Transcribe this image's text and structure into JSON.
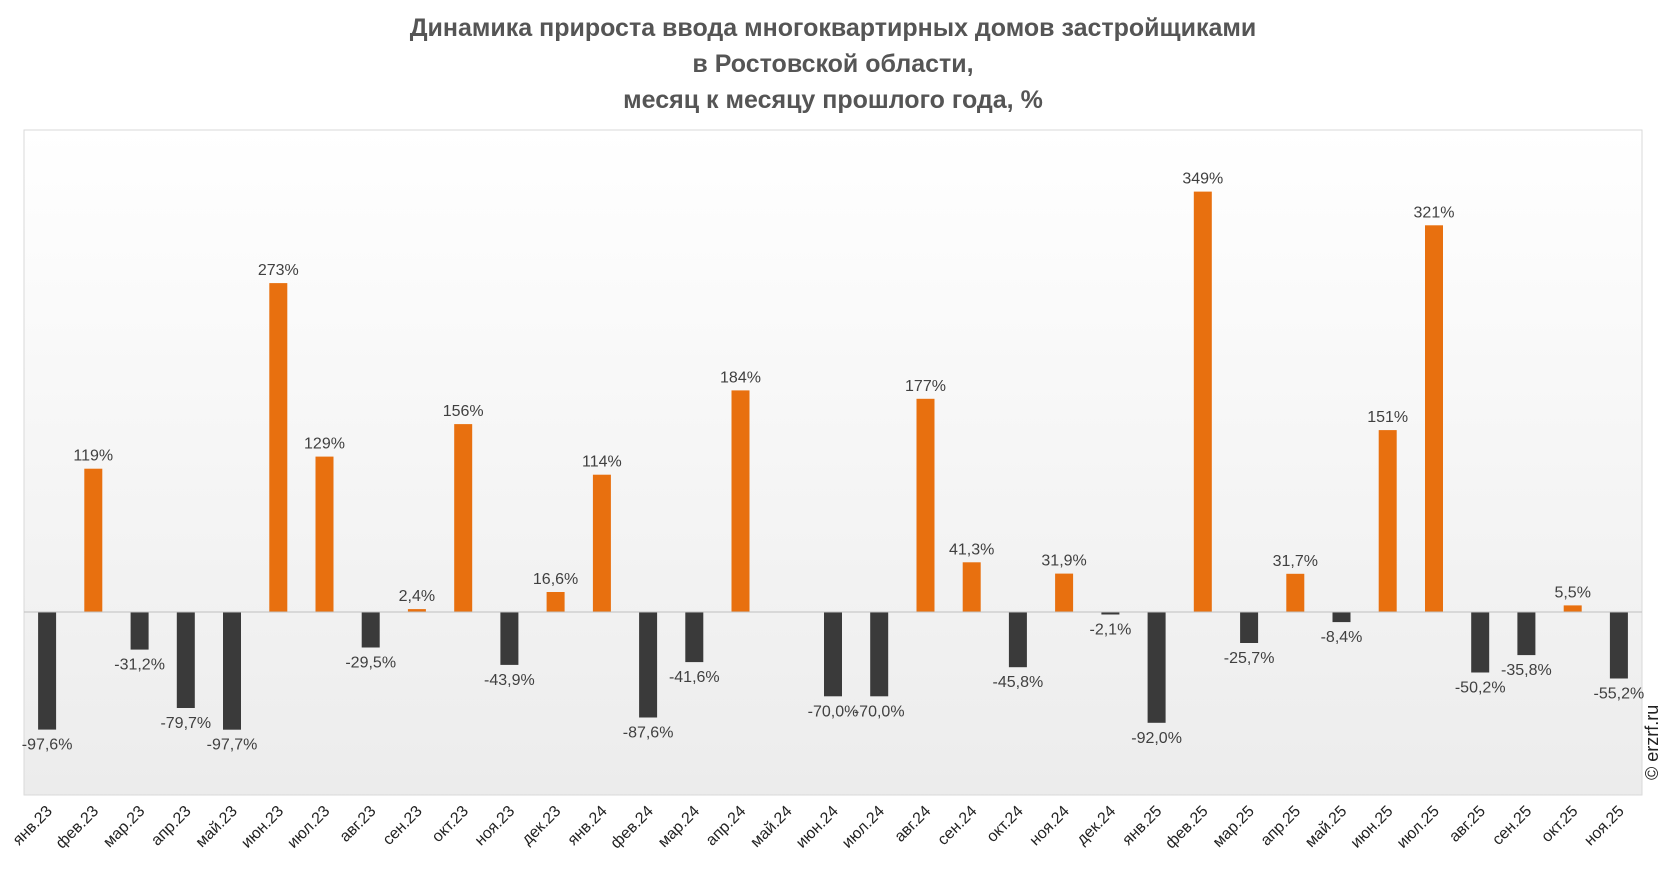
{
  "chart_data": {
    "type": "bar",
    "title_lines": [
      "Динамика прироста ввода многоквартирных домов застройщиками",
      "в Ростовской области,",
      "месяц к месяцу прошлого года, %"
    ],
    "xlabel": "",
    "ylabel": "",
    "ylim": [
      -115,
      415
    ],
    "grid": false,
    "legend": "none",
    "colors": {
      "positive": "#E8700F",
      "negative": "#3A3A3A"
    },
    "categories": [
      "янв.23",
      "фев.23",
      "мар.23",
      "апр.23",
      "май.23",
      "июн.23",
      "июл.23",
      "авг.23",
      "сен.23",
      "окт.23",
      "ноя.23",
      "дек.23",
      "янв.24",
      "фев.24",
      "мар.24",
      "апр.24",
      "май.24",
      "июн.24",
      "июл.24",
      "авг.24",
      "сен.24",
      "окт.24",
      "ноя.24",
      "дек.24",
      "янв.25",
      "фев.25",
      "мар.25",
      "апр.25",
      "май.25",
      "июн.25",
      "июл.25",
      "авг.25",
      "сен.25",
      "окт.25",
      "ноя.25"
    ],
    "values": [
      -97.6,
      119,
      -31.2,
      -79.7,
      -97.7,
      273,
      129,
      -29.5,
      2.4,
      156,
      -43.9,
      16.6,
      114,
      -87.6,
      -41.6,
      184,
      null,
      -70.0,
      -70.0,
      177,
      41.3,
      -45.8,
      31.9,
      -2.1,
      -92.0,
      349,
      -25.7,
      31.7,
      -8.4,
      151,
      321,
      -50.2,
      -35.8,
      5.5,
      -55.2
    ],
    "labels": [
      "-97,6%",
      "119%",
      "-31,2%",
      "-79,7%",
      "-97,7%",
      "273%",
      "129%",
      "-29,5%",
      "2,4%",
      "156%",
      "-43,9%",
      "16,6%",
      "114%",
      "-87,6%",
      "-41,6%",
      "184%",
      "",
      "-70,0%",
      "-70,0%",
      "177%",
      "41,3%",
      "-45,8%",
      "31,9%",
      "-2,1%",
      "-92,0%",
      "349%",
      "-25,7%",
      "31,7%",
      "-8,4%",
      "151%",
      "321%",
      "-50,2%",
      "-35,8%",
      "5,5%",
      "-55,2%"
    ]
  },
  "watermark": "© erzrf.ru"
}
